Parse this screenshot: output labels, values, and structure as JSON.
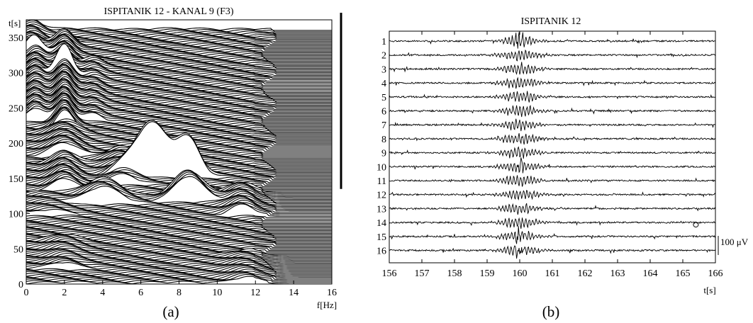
{
  "chart_data": [
    {
      "type": "area",
      "title": "ISPITANIK 12 - KANAL 9 (F3)",
      "xlabel": "f[Hz]",
      "ylabel": "t[s]",
      "xlim": [
        0,
        16
      ],
      "ylim": [
        0,
        375
      ],
      "xticks": [
        "0",
        "2",
        "4",
        "6",
        "8",
        "10",
        "12",
        "14",
        "16"
      ],
      "yticks": [
        "0",
        "50",
        "100",
        "150",
        "200",
        "250",
        "300",
        "350"
      ],
      "x_tick_values": [
        0,
        2,
        4,
        6,
        8,
        10,
        12,
        14,
        16
      ],
      "y_tick_values": [
        0,
        50,
        100,
        150,
        200,
        250,
        300,
        350
      ],
      "spectrum_step_s": 2,
      "peaks": [
        {
          "t_start": 0,
          "t_end": 40,
          "f": 11.5,
          "width": 0.7,
          "amp": 8
        },
        {
          "t_start": 95,
          "t_end": 130,
          "f": 11.3,
          "width": 0.6,
          "amp": 14
        },
        {
          "t_start": 20,
          "t_end": 60,
          "f": 2.0,
          "width": 0.7,
          "amp": 9
        },
        {
          "t_start": 95,
          "t_end": 125,
          "f": 1.2,
          "width": 0.9,
          "amp": 7
        },
        {
          "t_start": 115,
          "t_end": 125,
          "f": 8.5,
          "width": 0.75,
          "amp": 35
        },
        {
          "t_start": 112,
          "t_end": 124,
          "f": 4.0,
          "width": 0.9,
          "amp": 24
        },
        {
          "t_start": 130,
          "t_end": 170,
          "f": 2.0,
          "width": 0.6,
          "amp": 18
        },
        {
          "t_start": 150,
          "t_end": 152,
          "f": 8.5,
          "width": 0.6,
          "amp": 52
        },
        {
          "t_start": 150,
          "t_end": 152,
          "f": 6.6,
          "width": 0.85,
          "amp": 75
        },
        {
          "t_start": 140,
          "t_end": 180,
          "f": 5.0,
          "width": 0.7,
          "amp": 14
        },
        {
          "t_start": 180,
          "t_end": 215,
          "f": 2.0,
          "width": 0.7,
          "amp": 18
        },
        {
          "t_start": 215,
          "t_end": 290,
          "f": 2.0,
          "width": 0.45,
          "amp": 28
        },
        {
          "t_start": 230,
          "t_end": 320,
          "f": 0.5,
          "width": 0.45,
          "amp": 18
        },
        {
          "t_start": 230,
          "t_end": 310,
          "f": 3.5,
          "width": 0.45,
          "amp": 10
        },
        {
          "t_start": 290,
          "t_end": 340,
          "f": 2.0,
          "width": 0.45,
          "amp": 20
        },
        {
          "t_start": 320,
          "t_end": 360,
          "f": 0.3,
          "width": 0.5,
          "amp": 14
        }
      ],
      "vertical_bar": {
        "t_start": 135,
        "t_end": 385
      }
    },
    {
      "type": "line",
      "title": "ISPITANIK 12",
      "xlabel": "t[s]",
      "xlim": [
        156,
        166
      ],
      "xticks": [
        "156",
        "157",
        "158",
        "159",
        "160",
        "161",
        "162",
        "163",
        "164",
        "165",
        "166"
      ],
      "x_tick_values": [
        156,
        157,
        158,
        159,
        160,
        161,
        162,
        163,
        164,
        165,
        166
      ],
      "channels": [
        "1",
        "2",
        "3",
        "4",
        "5",
        "6",
        "7",
        "8",
        "9",
        "10",
        "11",
        "12",
        "13",
        "14",
        "15",
        "16"
      ],
      "burst_center_s": 160.0,
      "scale_bar_label": "100 μV",
      "annotation_marker": {
        "channel": "14",
        "t": 165.4
      }
    }
  ],
  "captions": {
    "a": "(a)",
    "b": "(b)"
  }
}
